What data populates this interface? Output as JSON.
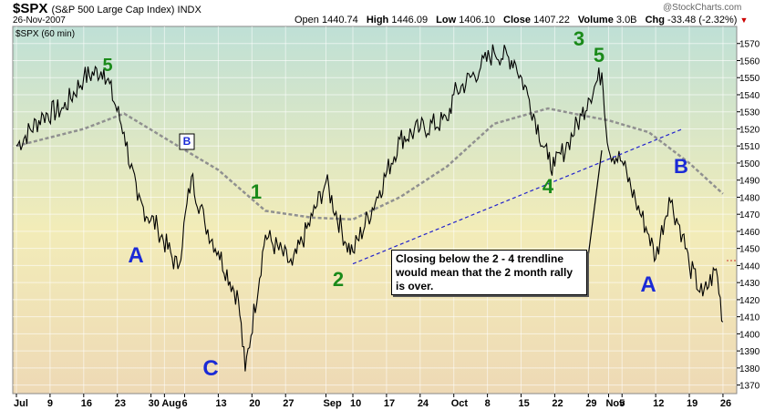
{
  "header": {
    "ticker": "$SPX",
    "ticker_desc": "(S&P 500 Large Cap Index) INDX",
    "date": "26-Nov-2007",
    "open_label": "Open",
    "open": "1440.74",
    "high_label": "High",
    "high": "1446.09",
    "low_label": "Low",
    "low": "1406.10",
    "close_label": "Close",
    "close": "1407.22",
    "volume_label": "Volume",
    "volume": "3.0B",
    "chg_label": "Chg",
    "chg": "-33.48 (-2.32%)",
    "watermark": "@StockCharts.com"
  },
  "colors": {
    "price": "#000000",
    "moving_average": "#909090",
    "trendline": "#2222cc",
    "green_label": "#1a8a1a",
    "blue_label": "#1a2ad6",
    "bg_top": "#bfe0d6",
    "bg_mid": "#f2ecb8",
    "bg_bottom": "#eed9b5"
  },
  "chart_data": {
    "type": "line",
    "legend": "$SPX (60 min)",
    "ylim": [
      1365,
      1580
    ],
    "y_ticks": [
      1370,
      1380,
      1390,
      1400,
      1410,
      1420,
      1430,
      1440,
      1450,
      1460,
      1470,
      1480,
      1490,
      1500,
      1510,
      1520,
      1530,
      1540,
      1550,
      1560,
      1570
    ],
    "x_ticks": [
      "Jul",
      "9",
      "16",
      "23",
      "30",
      "Aug",
      "6",
      "13",
      "20",
      "27",
      "Sep",
      "10",
      "17",
      "24",
      "Oct",
      "8",
      "15",
      "22",
      "29",
      "Nov",
      "5",
      "12",
      "19",
      "26"
    ],
    "series": [
      {
        "x": [
          "2007-07-02",
          "2007-07-06",
          "2007-07-11",
          "2007-07-16",
          "2007-07-19",
          "2007-07-24",
          "2007-07-26",
          "2007-07-31",
          "2007-08-03",
          "2007-08-07",
          "2007-08-09",
          "2007-08-13",
          "2007-08-16",
          "2007-08-17",
          "2007-08-22",
          "2007-08-28",
          "2007-08-31",
          "2007-09-04",
          "2007-09-07",
          "2007-09-10",
          "2007-09-14",
          "2007-09-19",
          "2007-09-24",
          "2007-09-28",
          "2007-10-01",
          "2007-10-05",
          "2007-10-09",
          "2007-10-12",
          "2007-10-16",
          "2007-10-19",
          "2007-10-22",
          "2007-10-24",
          "2007-10-26",
          "2007-10-29",
          "2007-10-31",
          "2007-11-01",
          "2007-11-05",
          "2007-11-07",
          "2007-11-09",
          "2007-11-12",
          "2007-11-14",
          "2007-11-16",
          "2007-11-19",
          "2007-11-21",
          "2007-11-23",
          "2007-11-26"
        ],
        "values": [
          1510,
          1528,
          1532,
          1550,
          1555,
          1518,
          1478,
          1462,
          1438,
          1492,
          1465,
          1448,
          1420,
          1378,
          1458,
          1440,
          1469,
          1489,
          1453,
          1448,
          1484,
          1514,
          1520,
          1525,
          1540,
          1556,
          1565,
          1560,
          1540,
          1502,
          1498,
          1512,
          1528,
          1538,
          1553,
          1508,
          1501,
          1478,
          1458,
          1444,
          1480,
          1458,
          1440,
          1422,
          1438,
          1407
        ]
      },
      {
        "x": [
          "2007-07-02",
          "2007-07-16",
          "2007-07-24",
          "2007-08-03",
          "2007-08-13",
          "2007-08-22",
          "2007-08-31",
          "2007-09-10",
          "2007-09-19",
          "2007-09-28",
          "2007-10-09",
          "2007-10-19",
          "2007-10-26",
          "2007-11-01",
          "2007-11-09",
          "2007-11-19",
          "2007-11-26"
        ],
        "values": [
          1510,
          1520,
          1529,
          1510,
          1496,
          1472,
          1468,
          1467,
          1480,
          1498,
          1523,
          1532,
          1528,
          1525,
          1518,
          1500,
          1482
        ]
      },
      {
        "x": [
          "2007-09-10",
          "2007-11-16"
        ],
        "values": [
          1441,
          1520
        ]
      }
    ]
  },
  "annotations": {
    "waves": [
      {
        "text": "5",
        "style": "green"
      },
      {
        "text": "A",
        "style": "blue"
      },
      {
        "text": "B",
        "style": "boxed"
      },
      {
        "text": "C",
        "style": "blue"
      },
      {
        "text": "1",
        "style": "green"
      },
      {
        "text": "2",
        "style": "green"
      },
      {
        "text": "3",
        "style": "green"
      },
      {
        "text": "5",
        "style": "green"
      },
      {
        "text": "4",
        "style": "green"
      },
      {
        "text": "B",
        "style": "blue"
      },
      {
        "text": "A",
        "style": "blue"
      }
    ],
    "callout": "Closing below the 2 - 4 trendline would mean that the 2 month rally is over."
  }
}
